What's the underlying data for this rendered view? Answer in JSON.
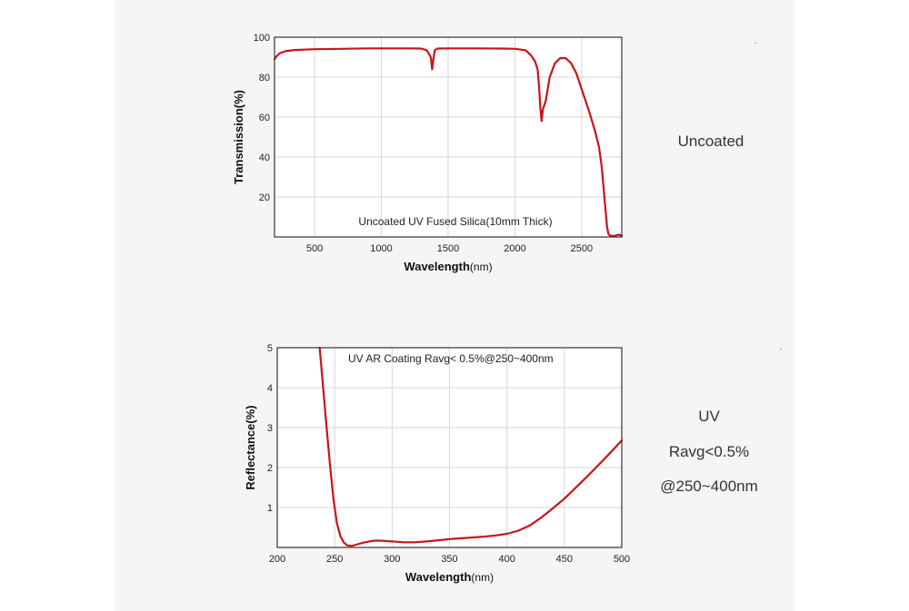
{
  "colors": {
    "panel": "#f5f5f5",
    "plot_bg": "#ffffff",
    "grid": "#d6d6d6",
    "curve": "#c8141b",
    "text": "#222222"
  },
  "side_labels": {
    "top": [
      "Uncoated"
    ],
    "bottom": [
      "UV",
      "Ravg<0.5%",
      "@250~400nm"
    ]
  },
  "chart_data": [
    {
      "type": "line",
      "title": "Uncoated UV Fused Silica(10mm Thick)",
      "xlabel": "Wavelength(nm)",
      "ylabel": "Transmission(%)",
      "xlim": [
        200,
        2800
      ],
      "ylim": [
        0,
        100
      ],
      "xticks": [
        500,
        1000,
        1500,
        2000,
        2500
      ],
      "yticks": [
        20,
        40,
        60,
        80,
        100
      ],
      "grid": true,
      "series": [
        {
          "x": [
            200,
            215,
            240,
            280,
            350,
            500,
            700,
            900,
            1000,
            1200,
            1300,
            1340,
            1370,
            1380,
            1390,
            1400,
            1420,
            1500,
            1700,
            1900,
            2000,
            2080,
            2120,
            2150,
            2170,
            2180,
            2190,
            2200,
            2210,
            2230,
            2260,
            2300,
            2340,
            2380,
            2420,
            2460,
            2500,
            2560,
            2600,
            2630,
            2650,
            2670,
            2690,
            2700,
            2710,
            2720,
            2740,
            2760,
            2780,
            2800
          ],
          "y": [
            89,
            90.5,
            92,
            93,
            93.6,
            94,
            94.2,
            94.4,
            94.4,
            94.4,
            94.3,
            93.5,
            90,
            84,
            89,
            93.5,
            94.3,
            94.4,
            94.4,
            94.3,
            94.2,
            93.5,
            91,
            88,
            84,
            76,
            65,
            58,
            64,
            68,
            80,
            87,
            89.6,
            89.5,
            87,
            82,
            74,
            62,
            53,
            45,
            35,
            20,
            5,
            1.5,
            0.8,
            0.6,
            0.5,
            0.8,
            1.2,
            0.5
          ]
        }
      ]
    },
    {
      "type": "line",
      "title": "UV AR Coating Ravg< 0.5%@250~400nm",
      "xlabel": "Wavelength(nm)",
      "ylabel": "Reflectance(%)",
      "xlim": [
        200,
        500
      ],
      "ylim": [
        0,
        5
      ],
      "xticks": [
        200,
        250,
        300,
        350,
        400,
        450,
        500
      ],
      "yticks": [
        1,
        2,
        3,
        4,
        5
      ],
      "grid": true,
      "series": [
        {
          "x": [
            237,
            240,
            243,
            246,
            249,
            252,
            255,
            258,
            261,
            265,
            270,
            275,
            280,
            285,
            290,
            295,
            300,
            305,
            310,
            320,
            330,
            340,
            350,
            360,
            370,
            380,
            390,
            400,
            410,
            420,
            430,
            440,
            450,
            460,
            470,
            480,
            490,
            500
          ],
          "y": [
            5.0,
            4.0,
            3.0,
            2.05,
            1.2,
            0.6,
            0.28,
            0.12,
            0.05,
            0.04,
            0.08,
            0.12,
            0.15,
            0.17,
            0.17,
            0.16,
            0.15,
            0.14,
            0.13,
            0.13,
            0.15,
            0.18,
            0.21,
            0.23,
            0.25,
            0.27,
            0.3,
            0.34,
            0.42,
            0.55,
            0.75,
            0.98,
            1.22,
            1.5,
            1.78,
            2.07,
            2.37,
            2.68
          ]
        }
      ]
    }
  ]
}
